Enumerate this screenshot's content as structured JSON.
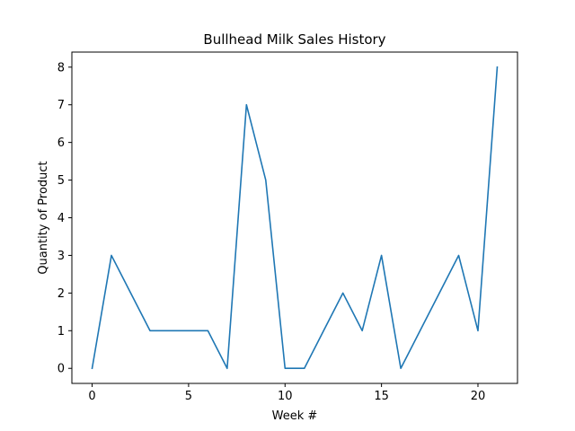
{
  "chart_data": {
    "type": "line",
    "title": "Bullhead Milk Sales History",
    "xlabel": "Week #",
    "ylabel": "Quantity of Product",
    "xlim": [
      -1.05,
      22.05
    ],
    "ylim": [
      -0.4,
      8.4
    ],
    "xticks": [
      0,
      5,
      10,
      15,
      20
    ],
    "yticks": [
      0,
      1,
      2,
      3,
      4,
      5,
      6,
      7,
      8
    ],
    "grid": false,
    "series": [
      {
        "color": "#1f77b4",
        "x": [
          0,
          1,
          2,
          3,
          4,
          5,
          6,
          7,
          8,
          9,
          10,
          11,
          12,
          13,
          14,
          15,
          16,
          17,
          18,
          19,
          20,
          21
        ],
        "y": [
          0,
          3,
          2,
          1,
          1,
          1,
          1,
          0,
          7,
          5,
          0,
          0,
          1,
          2,
          1,
          3,
          0,
          1,
          2,
          3,
          1,
          8
        ]
      }
    ]
  }
}
